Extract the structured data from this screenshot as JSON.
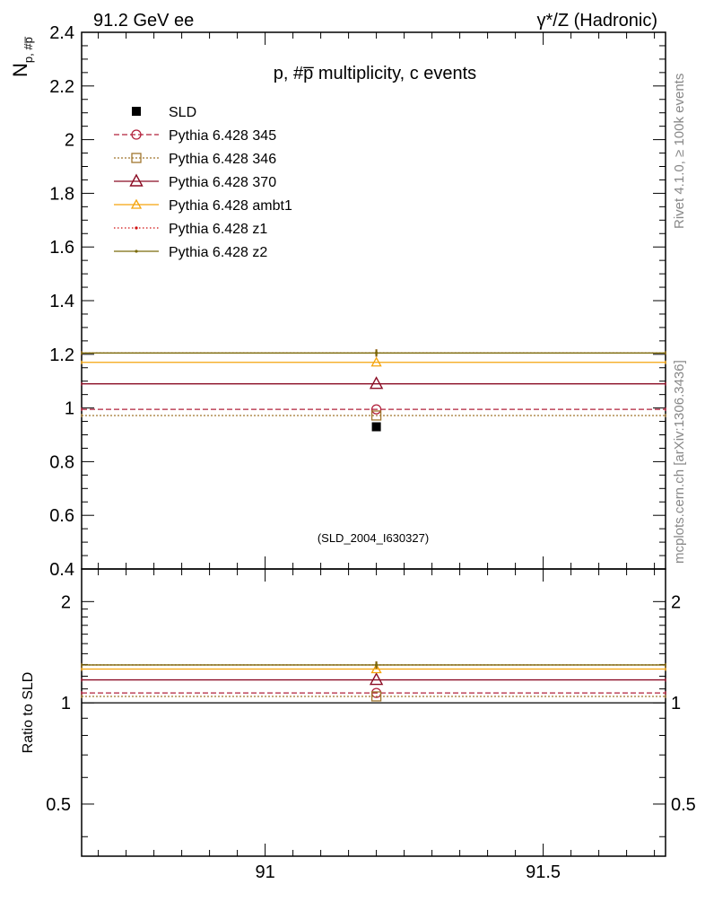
{
  "header": {
    "energy": "91.2 GeV ee",
    "process": "γ*/Z (Hadronic)"
  },
  "side_labels": {
    "rivet": "Rivet 4.1.0, ≥ 100k events",
    "mcplots": "mcplots.cern.ch [arXiv:1306.3436]"
  },
  "chart_data": [
    {
      "type": "scatter",
      "panel": "main",
      "title": "p, #p̅ multiplicity, c events",
      "ylabel": "N",
      "ylabel_sub": "p, #p̅",
      "xlabel": "",
      "xlim": [
        90.67,
        91.72
      ],
      "ylim": [
        0.4,
        2.4
      ],
      "yticks": [
        0.4,
        0.6,
        0.8,
        1,
        1.2,
        1.4,
        1.6,
        1.8,
        2,
        2.2,
        2.4
      ],
      "ytick_labels": [
        "0.4",
        "0.6",
        "0.8",
        "1",
        "1.2",
        "1.4",
        "1.6",
        "1.8",
        "2",
        "2.2",
        "2.4"
      ],
      "xticks": [
        91,
        91.5
      ],
      "annotation": "(SLD_2004_I630327)",
      "legend_position": "top-left",
      "data": {
        "name": "SLD",
        "x": 91.2,
        "y": 0.93,
        "color": "#000000"
      },
      "series": [
        {
          "name": "Pythia 6.428 345",
          "x": [
            90.67,
            91.72
          ],
          "y": 0.995,
          "marker_x": 91.2,
          "color": "#b2203b",
          "dash": "6,3",
          "marker": "circle"
        },
        {
          "name": "Pythia 6.428 346",
          "x": [
            90.67,
            91.72
          ],
          "y": 0.972,
          "marker_x": 91.2,
          "color": "#a0762e",
          "dash": "2,2",
          "marker": "square"
        },
        {
          "name": "Pythia 6.428 370",
          "x": [
            90.67,
            91.72
          ],
          "y": 1.09,
          "marker_x": 91.2,
          "color": "#8b0c24",
          "dash": "",
          "marker": "triangle"
        },
        {
          "name": "Pythia 6.428 ambt1",
          "x": [
            90.67,
            91.72
          ],
          "y": 1.17,
          "marker_x": 91.2,
          "color": "#f5a40c",
          "dash": "",
          "marker": "triangle-small"
        },
        {
          "name": "Pythia 6.428 z1",
          "x": [
            90.67,
            91.72
          ],
          "y": 1.205,
          "marker_x": 91.2,
          "color": "#d01010",
          "dash": "1.5,2.5",
          "marker": "dot"
        },
        {
          "name": "Pythia 6.428 z2",
          "x": [
            90.67,
            91.72
          ],
          "y": 1.205,
          "marker_x": 91.2,
          "color": "#7a6a0a",
          "dash": "",
          "marker": "dot"
        }
      ]
    },
    {
      "type": "line",
      "panel": "ratio",
      "ylabel": "Ratio to SLD",
      "scale": "log",
      "ylim": [
        0.35,
        2.5
      ],
      "yticks": [
        0.5,
        1,
        2
      ],
      "ytick_labels": [
        "0.5",
        "1",
        "2"
      ],
      "xticks": [
        91,
        91.5
      ],
      "xtick_labels": [
        "91",
        "91.5"
      ],
      "reference": 1.0,
      "series": [
        {
          "name": "Pythia 6.428 345",
          "y": 1.07
        },
        {
          "name": "Pythia 6.428 346",
          "y": 1.045
        },
        {
          "name": "Pythia 6.428 370",
          "y": 1.17
        },
        {
          "name": "Pythia 6.428 ambt1",
          "y": 1.26
        },
        {
          "name": "Pythia 6.428 z1",
          "y": 1.296
        },
        {
          "name": "Pythia 6.428 z2",
          "y": 1.296
        }
      ]
    }
  ]
}
